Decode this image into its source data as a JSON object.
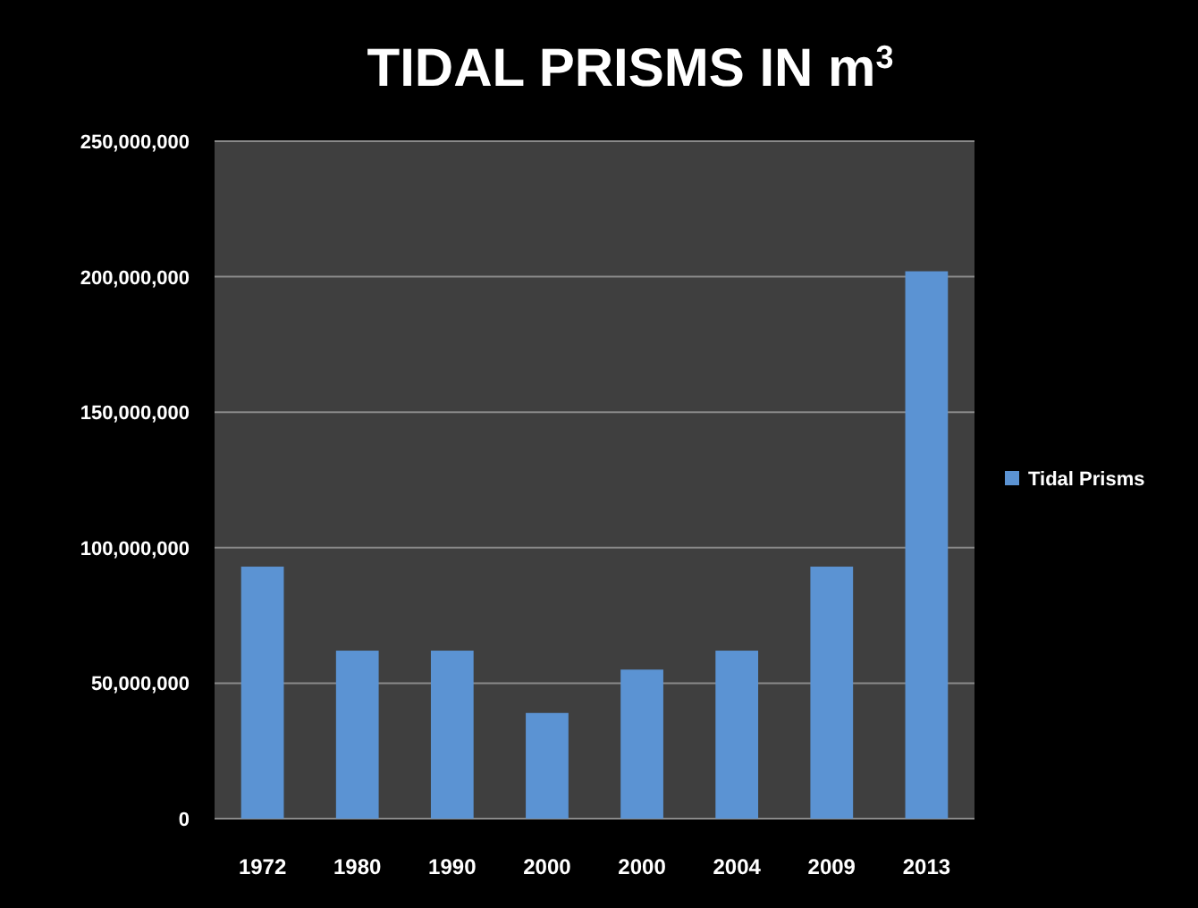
{
  "chart_data": {
    "type": "bar",
    "title": "TIDAL PRISMS IN m$^{3}$",
    "categories": [
      "1972",
      "1980",
      "1990",
      "2000",
      "2000",
      "2004",
      "2009",
      "2013"
    ],
    "series": [
      {
        "name": "Tidal Prisms",
        "color": "#5b93d3",
        "values": [
          93000000,
          62000000,
          62000000,
          39000000,
          55000000,
          62000000,
          93000000,
          202000000
        ]
      }
    ],
    "ylim": [
      0,
      250000000
    ],
    "yticks": [
      {
        "value": 0,
        "label": "0"
      },
      {
        "value": 50000000,
        "label": "50,000,000"
      },
      {
        "value": 100000000,
        "label": "100,000,000"
      },
      {
        "value": 150000000,
        "label": "150,000,000"
      },
      {
        "value": 200000000,
        "label": "200,000,000"
      },
      {
        "value": 250000000,
        "label": "250,000,000"
      }
    ],
    "grid": "y",
    "legend": "right"
  }
}
